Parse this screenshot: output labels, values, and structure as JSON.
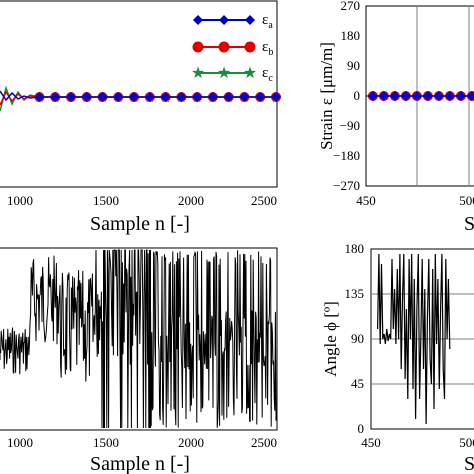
{
  "chart_data": [
    {
      "type": "line",
      "panel": "top-left",
      "xlabel": "Sample n [-]",
      "xlim": [
        750,
        2500
      ],
      "x_ticks": [
        1000,
        1500,
        2000,
        2500
      ],
      "series": [
        {
          "name": "ε",
          "sub": "a",
          "color": "#0000cc",
          "marker": "diamond",
          "x": [
            1000,
            1100,
            1200,
            1300,
            1400,
            1500,
            1600,
            1700,
            1800,
            1900,
            2000,
            2100,
            2200,
            2300,
            2400,
            2500
          ],
          "y": [
            0,
            0,
            0,
            0,
            0,
            0,
            0,
            0,
            0,
            0,
            0,
            0,
            0,
            0,
            0,
            0
          ]
        },
        {
          "name": "ε",
          "sub": "b",
          "color": "#e00000",
          "marker": "circle",
          "x": [
            1000,
            1100,
            1200,
            1300,
            1400,
            1500,
            1600,
            1700,
            1800,
            1900,
            2000,
            2100,
            2200,
            2300,
            2400,
            2500
          ],
          "y": [
            0,
            0,
            0,
            0,
            0,
            0,
            0,
            0,
            0,
            0,
            0,
            0,
            0,
            0,
            0,
            0
          ]
        },
        {
          "name": "ε",
          "sub": "c",
          "color": "#1a8c3a",
          "marker": "star",
          "x": [
            1000,
            1100,
            1200,
            1300,
            1400,
            1500,
            1600,
            1700,
            1800,
            1900,
            2000,
            2100,
            2200,
            2300,
            2400,
            2500
          ],
          "y": [
            0,
            0,
            0,
            0,
            0,
            0,
            0,
            0,
            0,
            0,
            0,
            0,
            0,
            0,
            0,
            0
          ]
        }
      ],
      "legend": "top-right"
    },
    {
      "type": "line",
      "panel": "top-right",
      "ylabel": "Strain ε [μm/m]",
      "xlabel": "S",
      "xlim": [
        450,
        530
      ],
      "ylim": [
        -270,
        270
      ],
      "x_ticks": [
        450,
        500
      ],
      "x_tick_labels": [
        "450",
        "500"
      ],
      "y_ticks": [
        270,
        180,
        90,
        0,
        -90,
        -180,
        -270
      ],
      "y_tick_labels": [
        "270",
        "180",
        "90",
        "0",
        "−90",
        "−180",
        "−270"
      ],
      "vlines": [
        475,
        500
      ],
      "series": [
        {
          "name": "ε",
          "sub": "b",
          "color": "#e00000",
          "marker": "circle",
          "x": [
            455,
            463,
            471,
            479,
            487,
            495,
            503,
            511,
            519,
            527
          ],
          "y": [
            0,
            0,
            0,
            0,
            0,
            0,
            0,
            0,
            0,
            0
          ]
        },
        {
          "name": "ε",
          "sub": "a",
          "color": "#0000cc",
          "marker": "diamond",
          "x": [
            455,
            463,
            471,
            479,
            487,
            495,
            503,
            511,
            519,
            527
          ],
          "y": [
            0,
            0,
            0,
            0,
            0,
            0,
            0,
            0,
            0,
            0
          ]
        }
      ]
    },
    {
      "type": "line",
      "panel": "bottom-left",
      "xlabel": "Sample n [-]",
      "xlim": [
        750,
        2500
      ],
      "x_ticks": [
        1000,
        1500,
        2000,
        2500
      ],
      "note": "angle trace 0–180; stable ~90 then rapid switching"
    },
    {
      "type": "line",
      "panel": "bottom-right",
      "ylabel": "Angle ϕ [º]",
      "xlabel": "S",
      "xlim": [
        450,
        530
      ],
      "ylim": [
        0,
        180
      ],
      "x_ticks": [
        450,
        500
      ],
      "x_tick_labels": [
        "450",
        "500"
      ],
      "y_ticks": [
        180,
        135,
        90,
        45,
        0
      ],
      "y_tick_labels": [
        "180",
        "135",
        "90",
        "45",
        "0"
      ],
      "hlines": [
        45,
        90,
        135
      ],
      "series": [
        {
          "name": "ϕ",
          "color": "#000000",
          "x": [
            455,
            456,
            457,
            458,
            459,
            460,
            461,
            462,
            463,
            464,
            465,
            466,
            467,
            468,
            469,
            470,
            471,
            472,
            473,
            474,
            475,
            476,
            477,
            478,
            479,
            480,
            481,
            482,
            483,
            484,
            485,
            486,
            487,
            488,
            489,
            490,
            491,
            492,
            493,
            494,
            495,
            496,
            497,
            498,
            499,
            500,
            501,
            502,
            503,
            504,
            505,
            506,
            507,
            508,
            509,
            510
          ],
          "y": [
            100,
            175,
            85,
            165,
            90,
            95,
            85,
            100,
            88,
            95,
            90,
            170,
            100,
            140,
            85,
            160,
            90,
            175,
            60,
            130,
            175,
            50,
            120,
            30,
            170,
            90,
            175,
            40,
            150,
            10,
            120,
            175,
            30,
            95,
            170,
            60,
            140,
            5,
            110,
            170,
            70,
            45,
            160,
            20,
            175,
            85,
            150,
            40,
            120,
            175,
            60,
            30,
            170,
            90,
            150,
            80
          ]
        }
      ]
    }
  ],
  "legend": {
    "items": [
      {
        "label": "ε",
        "sub": "a"
      },
      {
        "label": "ε",
        "sub": "b"
      },
      {
        "label": "ε",
        "sub": "c"
      }
    ]
  },
  "panels": {
    "tl": {
      "xlabel": "Sample n [-]",
      "ticks": [
        "1000",
        "1500",
        "2000",
        "2500"
      ]
    },
    "tr": {
      "xlabel": "S",
      "ylabel": "Strain ε [μm/m]",
      "xticks": [
        "450",
        "500"
      ],
      "yticks": [
        "270",
        "180",
        "90",
        "0",
        "−90",
        "−180",
        "−270"
      ]
    },
    "bl": {
      "xlabel": "Sample n [-]",
      "ticks": [
        "1000",
        "1500",
        "2000",
        "2500"
      ]
    },
    "br": {
      "xlabel": "S",
      "ylabel": "Angle ϕ [º]",
      "xticks": [
        "450",
        "500"
      ],
      "yticks": [
        "180",
        "135",
        "90",
        "45",
        "0"
      ]
    }
  }
}
